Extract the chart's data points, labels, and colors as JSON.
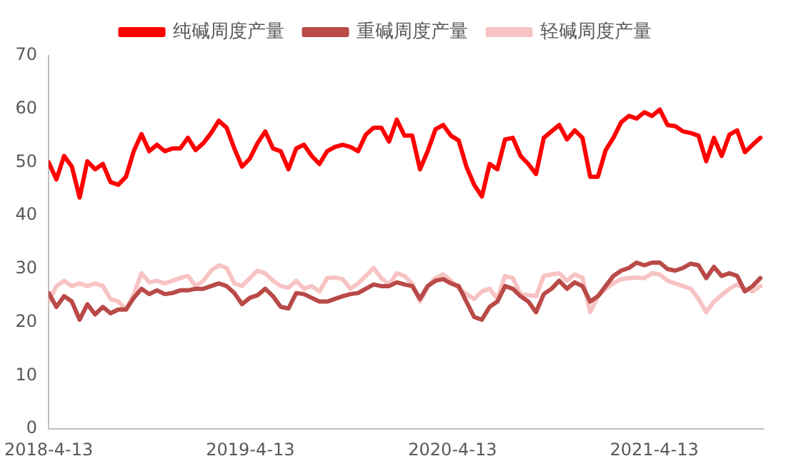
{
  "chart_data": {
    "type": "line",
    "legend": "top",
    "grid": false,
    "marker": "none",
    "line_style": "solid",
    "x": [
      "2018-04-13",
      "2018-04-27",
      "2018-05-11",
      "2018-05-25",
      "2018-06-08",
      "2018-06-22",
      "2018-07-06",
      "2018-07-20",
      "2018-08-03",
      "2018-08-17",
      "2018-08-31",
      "2018-09-14",
      "2018-09-28",
      "2018-10-12",
      "2018-10-26",
      "2018-11-09",
      "2018-11-23",
      "2018-12-07",
      "2018-12-21",
      "2019-01-04",
      "2019-01-18",
      "2019-02-01",
      "2019-02-15",
      "2019-03-01",
      "2019-03-15",
      "2019-03-29",
      "2019-04-12",
      "2019-04-26",
      "2019-05-10",
      "2019-05-24",
      "2019-06-07",
      "2019-06-21",
      "2019-07-05",
      "2019-07-19",
      "2019-08-02",
      "2019-08-16",
      "2019-08-30",
      "2019-09-13",
      "2019-09-27",
      "2019-10-11",
      "2019-10-25",
      "2019-11-08",
      "2019-11-22",
      "2019-12-06",
      "2019-12-20",
      "2020-01-03",
      "2020-01-17",
      "2020-01-31",
      "2020-02-14",
      "2020-02-28",
      "2020-03-13",
      "2020-03-27",
      "2020-04-10",
      "2020-04-24",
      "2020-05-08",
      "2020-05-22",
      "2020-06-05",
      "2020-06-19",
      "2020-07-03",
      "2020-07-17",
      "2020-07-31",
      "2020-08-14",
      "2020-08-28",
      "2020-09-11",
      "2020-09-25",
      "2020-10-09",
      "2020-10-23",
      "2020-11-06",
      "2020-11-20",
      "2020-12-04",
      "2020-12-18",
      "2021-01-01",
      "2021-01-15",
      "2021-01-29",
      "2021-02-12",
      "2021-02-26",
      "2021-03-12",
      "2021-03-26",
      "2021-04-09",
      "2021-04-23",
      "2021-05-07",
      "2021-05-21",
      "2021-06-04",
      "2021-06-18",
      "2021-07-02",
      "2021-07-16",
      "2021-07-30",
      "2021-08-13",
      "2021-08-27",
      "2021-09-10",
      "2021-09-24",
      "2021-10-08",
      "2021-10-22"
    ],
    "xlim": [
      "2018-04-13",
      "2021-10-27"
    ],
    "xticks": [
      {
        "value": "2018-04-13",
        "label": "2018-4-13"
      },
      {
        "value": "2019-04-13",
        "label": "2019-4-13"
      },
      {
        "value": "2020-04-13",
        "label": "2020-4-13"
      },
      {
        "value": "2021-04-13",
        "label": "2021-4-13"
      }
    ],
    "ylim": [
      0,
      70
    ],
    "yticks": [
      0,
      10,
      20,
      30,
      40,
      50,
      60,
      70
    ],
    "series": [
      {
        "name": "纯碱周度产量",
        "color": "#ff0000",
        "values": [
          50,
          46.8,
          51.2,
          49.2,
          43.4,
          50.2,
          48.7,
          49.7,
          46.3,
          45.8,
          47.3,
          52.1,
          55.3,
          52.1,
          53.3,
          52.1,
          52.6,
          52.6,
          54.6,
          52.3,
          53.6,
          55.5,
          57.8,
          56.5,
          52.6,
          49.2,
          50.7,
          53.6,
          55.8,
          52.6,
          52.1,
          48.7,
          52.6,
          53.3,
          51.2,
          49.7,
          52.1,
          52.9,
          53.3,
          52.9,
          52.1,
          55.2,
          56.5,
          56.5,
          53.9,
          58,
          55,
          55,
          48.7,
          52.1,
          56.2,
          57,
          55,
          54.1,
          49.2,
          45.8,
          43.6,
          49.7,
          48.7,
          54.3,
          54.6,
          51.2,
          49.7,
          47.8,
          54.6,
          55.8,
          57,
          54.3,
          56,
          54.6,
          47.3,
          47.3,
          52.3,
          54.6,
          57.5,
          58.7,
          58.2,
          59.4,
          58.7,
          59.9,
          57,
          56.8,
          55.8,
          55.5,
          55,
          50.2,
          54.6,
          51.2,
          55.2,
          56,
          51.9,
          53.3,
          54.6
        ]
      },
      {
        "name": "重碱周度产量",
        "color": "#b94a48",
        "values": [
          25.5,
          22.9,
          24.9,
          23.9,
          20.5,
          23.4,
          21.5,
          22.9,
          21.7,
          22.4,
          22.4,
          24.6,
          26.3,
          25.3,
          26,
          25.3,
          25.5,
          26,
          26,
          26.3,
          26.3,
          26.8,
          27.3,
          26.8,
          25.5,
          23.4,
          24.6,
          25.1,
          26.3,
          24.9,
          22.9,
          22.6,
          25.5,
          25.3,
          24.6,
          23.9,
          23.9,
          24.4,
          24.9,
          25.3,
          25.5,
          26.3,
          27.1,
          26.8,
          26.8,
          27.5,
          27.1,
          26.8,
          24.4,
          26.8,
          27.8,
          28.1,
          27.3,
          26.8,
          23.9,
          21,
          20.5,
          22.9,
          23.9,
          26.8,
          26.3,
          24.9,
          23.9,
          21.9,
          25.3,
          26.3,
          27.8,
          26.3,
          27.5,
          26.8,
          23.9,
          24.9,
          26.8,
          28.7,
          29.7,
          30.2,
          31.2,
          30.7,
          31.2,
          31.2,
          30,
          29.7,
          30.2,
          31,
          30.7,
          28.3,
          30.4,
          28.7,
          29.2,
          28.7,
          25.8,
          26.8,
          28.3
        ]
      },
      {
        "name": "轻碱周度产量",
        "color": "#f7c3c3",
        "values": [
          23.9,
          26.8,
          27.8,
          26.8,
          27.3,
          26.8,
          27.3,
          26.8,
          24.4,
          23.9,
          22.4,
          25.3,
          29.2,
          27.5,
          27.8,
          27.3,
          27.8,
          28.3,
          28.7,
          26.8,
          27.8,
          29.7,
          30.7,
          30.2,
          27.3,
          26.8,
          28.3,
          29.7,
          29.2,
          27.8,
          26.8,
          26.5,
          27.8,
          26.3,
          26.8,
          25.8,
          28.3,
          28.4,
          28.1,
          26.3,
          27.3,
          28.7,
          30.2,
          28.3,
          27.1,
          29.2,
          28.7,
          27.3,
          23.9,
          26.8,
          28.3,
          29,
          27.8,
          26.3,
          25.3,
          24.4,
          25.8,
          26.3,
          24.4,
          28.7,
          28.3,
          25.3,
          25.1,
          24.9,
          28.7,
          29,
          29.2,
          27.8,
          29,
          28.4,
          21.9,
          24.9,
          26.3,
          27.3,
          28.1,
          28.3,
          28.4,
          28.3,
          29.2,
          29,
          27.8,
          27.3,
          26.8,
          26.3,
          24.4,
          21.9,
          23.9,
          25.1,
          26.3,
          27.1,
          26.3,
          25.8,
          26.8
        ]
      }
    ]
  }
}
